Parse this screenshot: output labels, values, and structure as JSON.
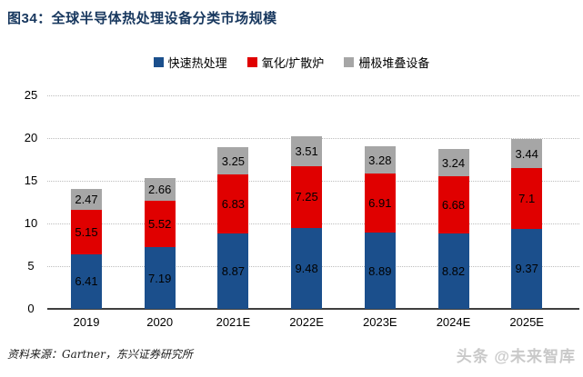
{
  "title": "图34：全球半导体热处理设备分类市场规模",
  "source_note": "资料来源：Gartner，东兴证券研究所",
  "watermark": "头条 @未来智库",
  "colors": {
    "title_text": "#17375E",
    "series_blue": "#1B4F8C",
    "series_red": "#E00000",
    "series_gray": "#A6A6A6",
    "gridline": "#BDBDBD",
    "axis": "#3F3F3F",
    "watermark_text": "#C9C9C9"
  },
  "chart_data": {
    "type": "bar",
    "stacked": true,
    "title": "全球半导体热处理设备分类市场规模",
    "categories": [
      "2019",
      "2020",
      "2021E",
      "2022E",
      "2023E",
      "2024E",
      "2025E"
    ],
    "series": [
      {
        "name": "快速热处理",
        "color": "#1B4F8C",
        "values": [
          6.41,
          7.19,
          8.87,
          9.48,
          8.89,
          8.82,
          9.37
        ]
      },
      {
        "name": "氧化/扩散炉",
        "color": "#E00000",
        "values": [
          5.15,
          5.52,
          6.83,
          7.25,
          6.91,
          6.68,
          7.1
        ]
      },
      {
        "name": "栅极堆叠设备",
        "color": "#A6A6A6",
        "values": [
          2.47,
          2.66,
          3.25,
          3.51,
          3.28,
          3.24,
          3.44
        ]
      }
    ],
    "ylim": [
      0,
      25
    ],
    "yticks": [
      0,
      5,
      10,
      15,
      20,
      25
    ],
    "xlabel": "",
    "ylabel": "",
    "grid": "horizontal-dotted",
    "legend_position": "top-center",
    "data_labels": true
  }
}
